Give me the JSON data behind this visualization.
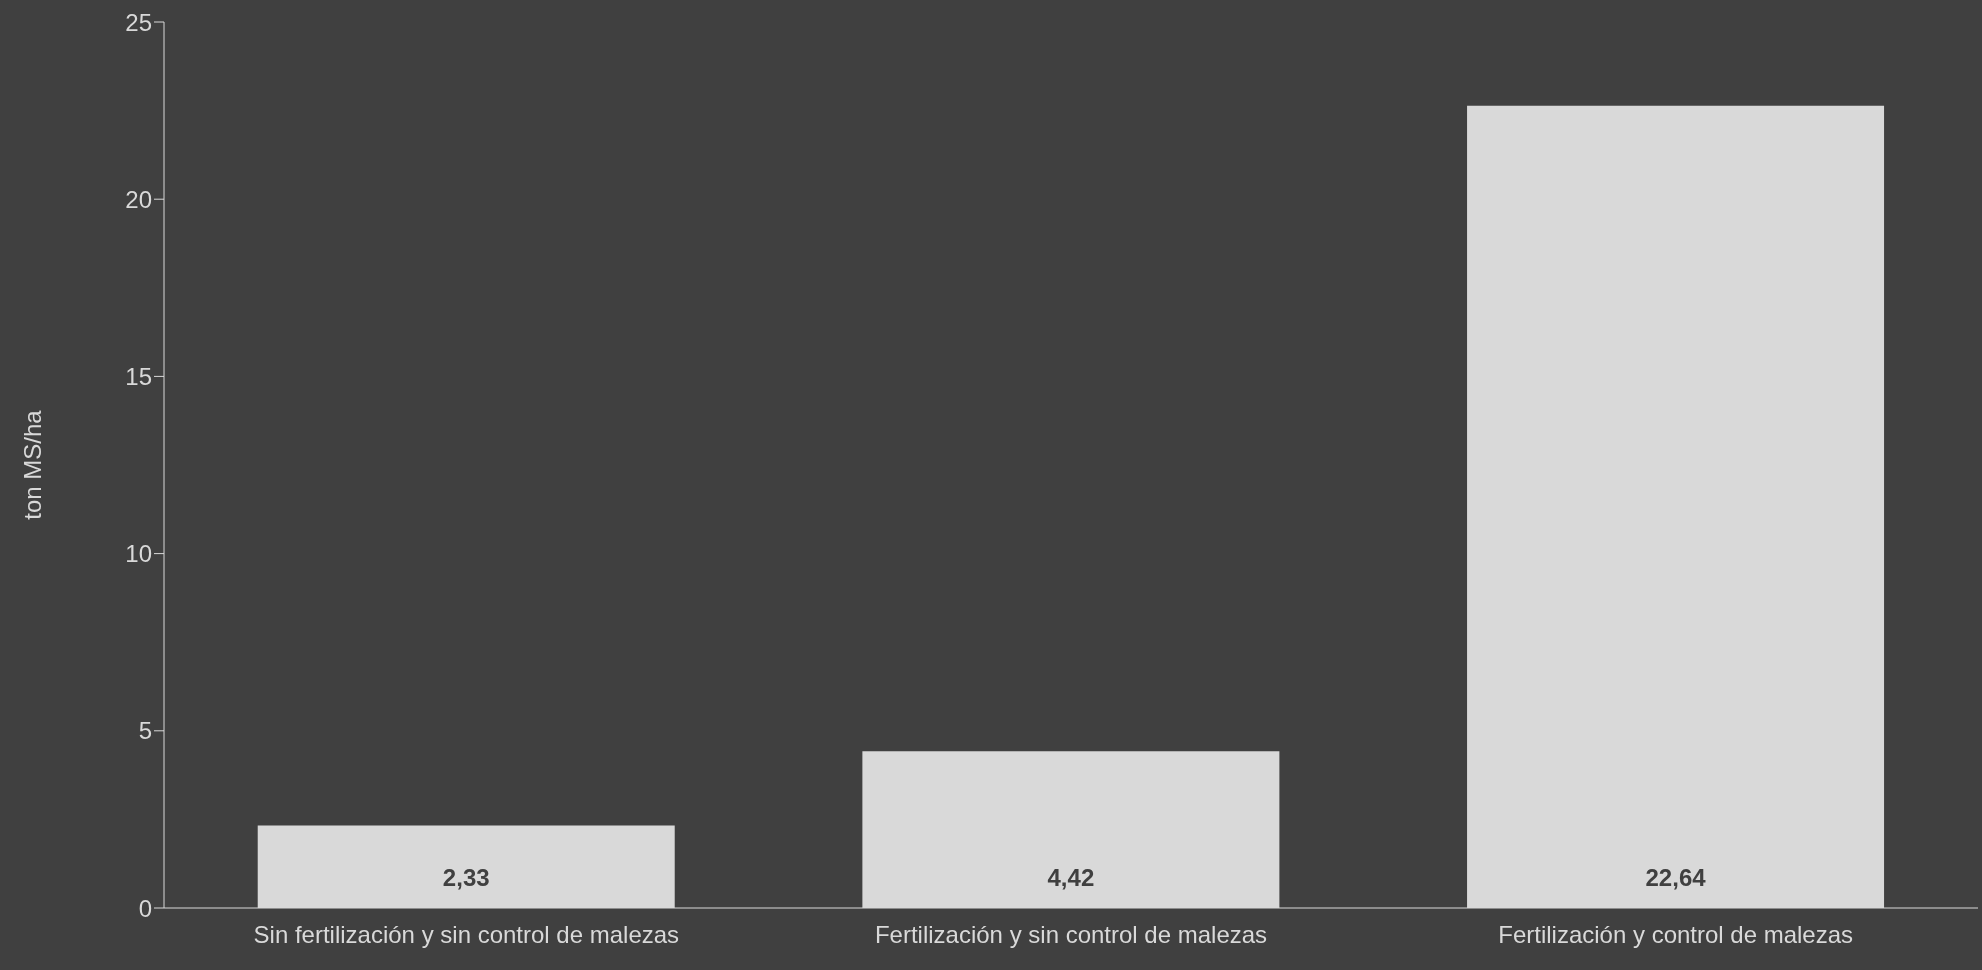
{
  "chart_data": {
    "type": "bar",
    "ylabel": "ton MS/ha",
    "categories": [
      "Sin fertilización y sin control de malezas",
      "Fertilización y sin control de malezas",
      "Fertilización y control de malezas"
    ],
    "values": [
      2.33,
      4.42,
      22.64
    ],
    "color": "#d9d9d9",
    "value_labels": [
      "2,33",
      "4,42",
      "22,64"
    ],
    "ylim": [
      0,
      25
    ],
    "yticks": [
      0,
      5,
      10,
      15,
      20,
      25
    ],
    "grid": false
  }
}
